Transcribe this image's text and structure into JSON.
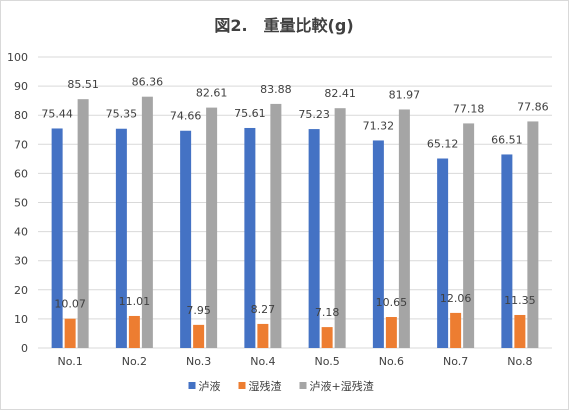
{
  "chart_data": {
    "type": "bar",
    "title": "図2.　重量比較(g)",
    "xlabel": "",
    "ylabel": "",
    "ylim": [
      0,
      100
    ],
    "yticks": [
      0,
      10,
      20,
      30,
      40,
      50,
      60,
      70,
      80,
      90,
      100
    ],
    "grid": true,
    "legend_position": "bottom",
    "categories": [
      "No.1",
      "No.2",
      "No.3",
      "No.4",
      "No.5",
      "No.6",
      "No.7",
      "No.8"
    ],
    "series": [
      {
        "name": "泸液",
        "color": "#4472C4",
        "values": [
          75.44,
          75.35,
          74.66,
          75.61,
          75.23,
          71.32,
          65.12,
          66.51
        ]
      },
      {
        "name": "湿残渣",
        "color": "#ED7D31",
        "values": [
          10.07,
          11.01,
          7.95,
          8.27,
          7.18,
          10.65,
          12.06,
          11.35
        ]
      },
      {
        "name": "泸液+湿残渣",
        "color": "#A5A5A5",
        "values": [
          85.51,
          86.36,
          82.61,
          83.88,
          82.41,
          81.97,
          77.18,
          77.86
        ]
      }
    ]
  }
}
